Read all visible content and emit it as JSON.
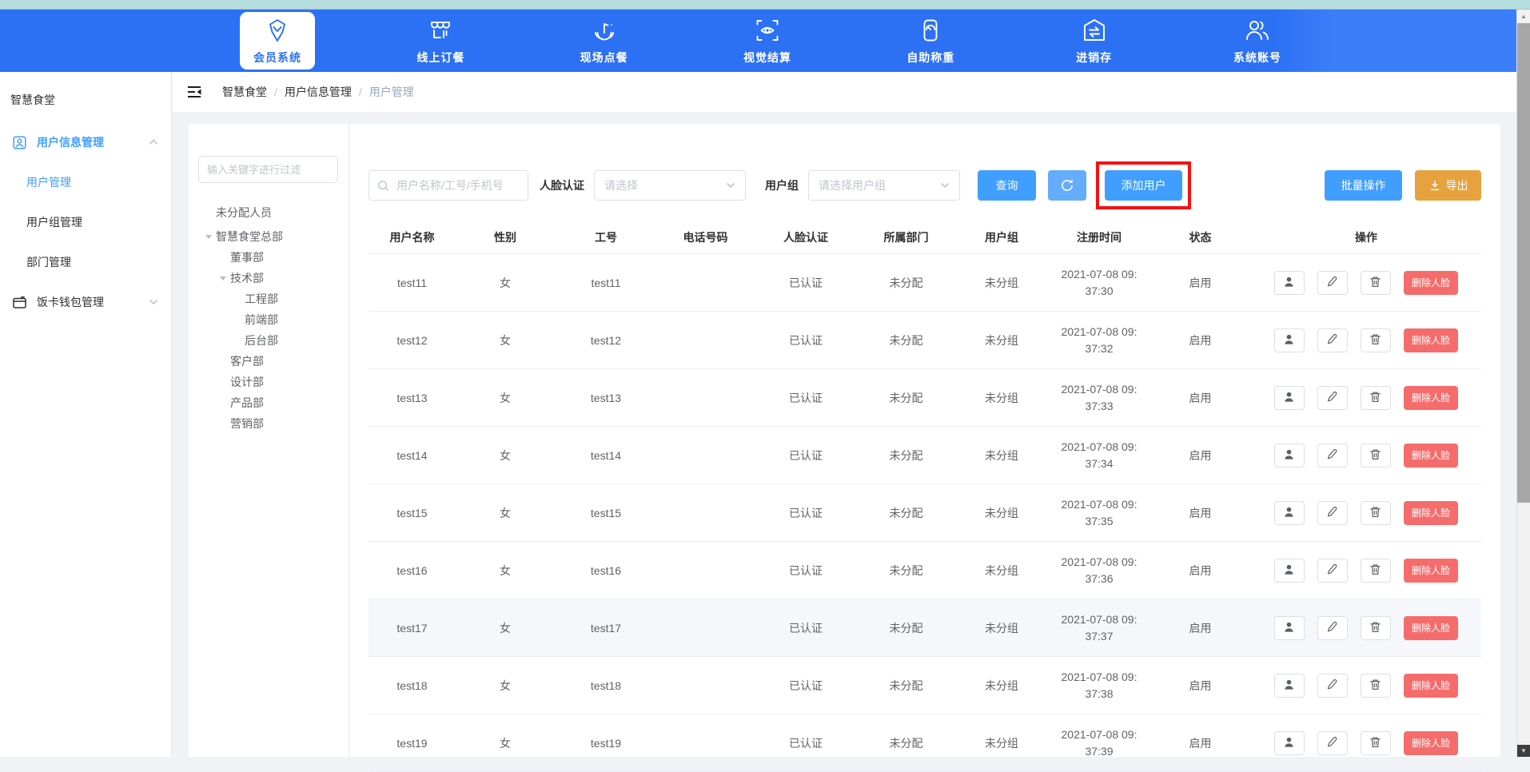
{
  "topnav": {
    "items": [
      {
        "slug": "member-system",
        "icon": "member-system-icon",
        "label": "会员系统",
        "active": true
      },
      {
        "slug": "online-order",
        "icon": "online-order-icon",
        "label": "线上订餐",
        "active": false
      },
      {
        "slug": "onsite-order",
        "icon": "onsite-order-icon",
        "label": "现场点餐",
        "active": false
      },
      {
        "slug": "visual-checkout",
        "icon": "visual-checkout-icon",
        "label": "视觉结算",
        "active": false
      },
      {
        "slug": "self-weigh",
        "icon": "self-weigh-icon",
        "label": "自助称重",
        "active": false
      },
      {
        "slug": "inventory",
        "icon": "inventory-icon",
        "label": "进销存",
        "active": false
      },
      {
        "slug": "system-account",
        "icon": "system-account-icon",
        "label": "系统账号",
        "active": false
      }
    ]
  },
  "sidebar": {
    "title": "智慧食堂",
    "menus": [
      {
        "slug": "user-info-management",
        "icon": "user-info-icon",
        "label": "用户信息管理",
        "expanded": true,
        "active": true,
        "children": [
          {
            "slug": "user-management",
            "label": "用户管理",
            "active": true
          },
          {
            "slug": "user-group-management",
            "label": "用户组管理",
            "active": false
          },
          {
            "slug": "department-management",
            "label": "部门管理",
            "active": false
          }
        ]
      },
      {
        "slug": "meal-card-wallet",
        "icon": "wallet-icon",
        "label": "饭卡钱包管理",
        "expanded": false,
        "active": false,
        "children": []
      }
    ]
  },
  "breadcrumb": {
    "separator": "/",
    "items": [
      "智慧食堂",
      "用户信息管理",
      "用户管理"
    ]
  },
  "tree": {
    "filter_placeholder": "输入关键字进行过滤",
    "nodes": [
      {
        "label": "未分配人员"
      },
      {
        "label": "智慧食堂总部",
        "expanded": true,
        "children": [
          {
            "label": "董事部"
          },
          {
            "label": "技术部",
            "expanded": true,
            "children": [
              {
                "label": "工程部"
              },
              {
                "label": "前端部"
              },
              {
                "label": "后台部"
              }
            ]
          },
          {
            "label": "客户部"
          },
          {
            "label": "设计部"
          },
          {
            "label": "产品部"
          },
          {
            "label": "营销部"
          }
        ]
      }
    ]
  },
  "filters": {
    "search_placeholder": "用户名称/工号/手机号",
    "face_label": "人脸认证",
    "face_placeholder": "请选择",
    "group_label": "用户组",
    "group_placeholder": "请选择用户组",
    "query_button": "查询",
    "add_user_button": "添加用户",
    "batch_button": "批量操作",
    "export_button": "导出"
  },
  "table": {
    "columns": [
      "用户名称",
      "性别",
      "工号",
      "电话号码",
      "人脸认证",
      "所属部门",
      "用户组",
      "注册时间",
      "状态",
      "操作"
    ],
    "action_icons": [
      "user-icon",
      "edit-icon",
      "trash-icon"
    ],
    "delete_face_label": "删除人脸",
    "rows": [
      {
        "name": "test11",
        "gender": "女",
        "job_no": "test11",
        "phone": "",
        "face_auth": "已认证",
        "department": "未分配",
        "user_group": "未分组",
        "registered_lines": [
          "2021-07-08 09:",
          "37:30"
        ],
        "status": "启用",
        "hovered": false
      },
      {
        "name": "test12",
        "gender": "女",
        "job_no": "test12",
        "phone": "",
        "face_auth": "已认证",
        "department": "未分配",
        "user_group": "未分组",
        "registered_lines": [
          "2021-07-08 09:",
          "37:32"
        ],
        "status": "启用",
        "hovered": false
      },
      {
        "name": "test13",
        "gender": "女",
        "job_no": "test13",
        "phone": "",
        "face_auth": "已认证",
        "department": "未分配",
        "user_group": "未分组",
        "registered_lines": [
          "2021-07-08 09:",
          "37:33"
        ],
        "status": "启用",
        "hovered": false
      },
      {
        "name": "test14",
        "gender": "女",
        "job_no": "test14",
        "phone": "",
        "face_auth": "已认证",
        "department": "未分配",
        "user_group": "未分组",
        "registered_lines": [
          "2021-07-08 09:",
          "37:34"
        ],
        "status": "启用",
        "hovered": false
      },
      {
        "name": "test15",
        "gender": "女",
        "job_no": "test15",
        "phone": "",
        "face_auth": "已认证",
        "department": "未分配",
        "user_group": "未分组",
        "registered_lines": [
          "2021-07-08 09:",
          "37:35"
        ],
        "status": "启用",
        "hovered": false
      },
      {
        "name": "test16",
        "gender": "女",
        "job_no": "test16",
        "phone": "",
        "face_auth": "已认证",
        "department": "未分配",
        "user_group": "未分组",
        "registered_lines": [
          "2021-07-08 09:",
          "37:36"
        ],
        "status": "启用",
        "hovered": false
      },
      {
        "name": "test17",
        "gender": "女",
        "job_no": "test17",
        "phone": "",
        "face_auth": "已认证",
        "department": "未分配",
        "user_group": "未分组",
        "registered_lines": [
          "2021-07-08 09:",
          "37:37"
        ],
        "status": "启用",
        "hovered": true
      },
      {
        "name": "test18",
        "gender": "女",
        "job_no": "test18",
        "phone": "",
        "face_auth": "已认证",
        "department": "未分配",
        "user_group": "未分组",
        "registered_lines": [
          "2021-07-08 09:",
          "37:38"
        ],
        "status": "启用",
        "hovered": false
      },
      {
        "name": "test19",
        "gender": "女",
        "job_no": "test19",
        "phone": "",
        "face_auth": "已认证",
        "department": "未分配",
        "user_group": "未分组",
        "registered_lines": [
          "2021-07-08 09:",
          "37:39"
        ],
        "status": "启用",
        "hovered": false
      }
    ]
  },
  "colors": {
    "teal_strip": "#b8dfe0",
    "topbar_blue": "#2c70f4",
    "primary": "#409eff",
    "refresh_blue": "#64acfc",
    "warning_orange": "#e6a23c",
    "danger_red": "#f56c6c",
    "annotation_red": "#f5120e",
    "page_bg": "#f0f2f5",
    "hover_row_bg": "#f5f7fa"
  }
}
